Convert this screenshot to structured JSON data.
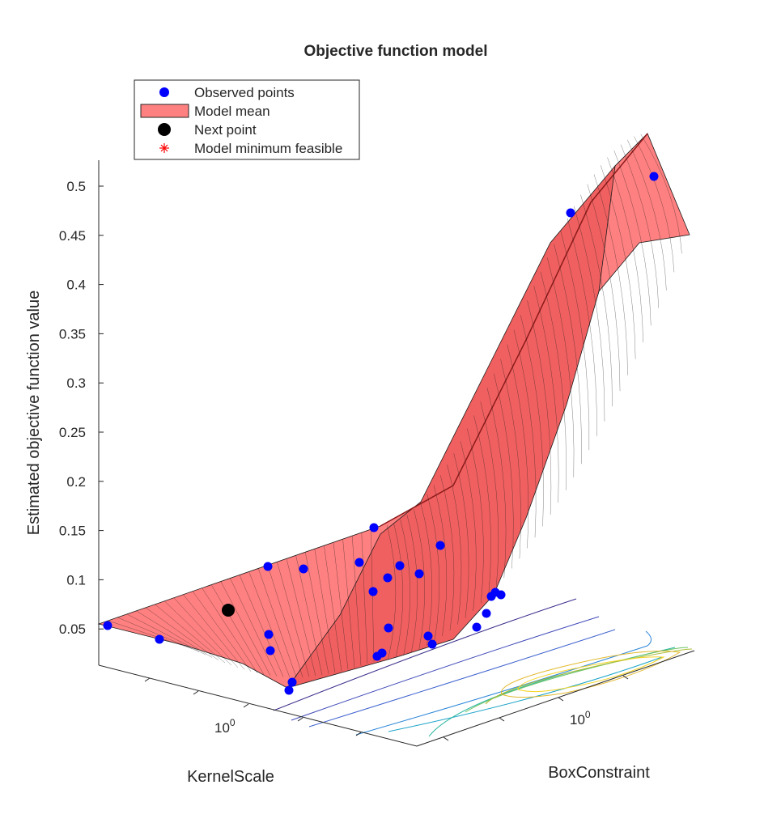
{
  "chart_data": {
    "type": "surface3d",
    "title": "Objective function model",
    "xlabel": "KernelScale",
    "ylabel": "BoxConstraint",
    "zlabel": "Estimated objective function value",
    "x_scale": "log",
    "y_scale": "log",
    "x_ticks": [
      {
        "exp": "0",
        "base": "10"
      }
    ],
    "y_ticks": [
      {
        "exp": "0",
        "base": "10"
      }
    ],
    "z_ticks": [
      "0.05",
      "0.1",
      "0.15",
      "0.2",
      "0.25",
      "0.3",
      "0.35",
      "0.4",
      "0.45",
      "0.5"
    ],
    "zlim": [
      0.015,
      0.525
    ],
    "grid": false,
    "legend_position": "top-left",
    "legend": [
      {
        "label": "Observed points",
        "marker": "filled-circle",
        "color": "#0000ff"
      },
      {
        "label": "Model mean",
        "marker": "patch",
        "color": "#ff8080"
      },
      {
        "label": "Next point",
        "marker": "filled-circle",
        "color": "#000000"
      },
      {
        "label": "Model minimum feasible",
        "marker": "asterisk",
        "color": "#ff0000"
      }
    ],
    "colors": {
      "surface": "#ff8080",
      "surface_edge": "#1a1a1a",
      "observed": "#0000ff",
      "next": "#000000",
      "minimum": "#ff0000",
      "axis": "#262626"
    },
    "observed_points_z": [
      0.055,
      0.04,
      0.115,
      0.113,
      0.044,
      0.028,
      0.003,
      0.007,
      0.155,
      0.118,
      0.103,
      0.116,
      0.107,
      0.138,
      0.09,
      0.052,
      0.024,
      0.026,
      0.037,
      0.045,
      0.055,
      0.067,
      0.078,
      0.082,
      0.083,
      0.475,
      0.51
    ],
    "next_point_z": 0.069
  }
}
